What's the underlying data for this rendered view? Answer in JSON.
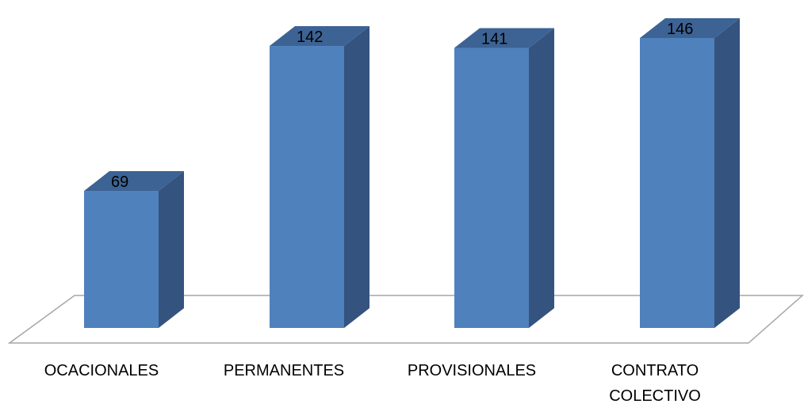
{
  "chart_data": {
    "type": "bar",
    "style": "3d-column",
    "categories": [
      "OCACIONALES",
      "PERMANENTES",
      "PROVISIONALES",
      "CONTRATO COLECTIVO"
    ],
    "category_lines": [
      [
        "OCACIONALES"
      ],
      [
        "PERMANENTES"
      ],
      [
        "PROVISIONALES"
      ],
      [
        "CONTRATO",
        "COLECTIVO"
      ]
    ],
    "values": [
      69,
      142,
      141,
      146
    ],
    "data_labels": [
      "69",
      "142",
      "141",
      "146"
    ],
    "title": "",
    "xlabel": "",
    "ylabel": "",
    "ylim": [
      0,
      146
    ],
    "grid": false,
    "legend": "none",
    "colors": {
      "bar_front": "#4f81bd",
      "bar_side": "#34537f",
      "bar_top": "#3c6394",
      "floor_stroke": "#a6a6a6"
    }
  }
}
